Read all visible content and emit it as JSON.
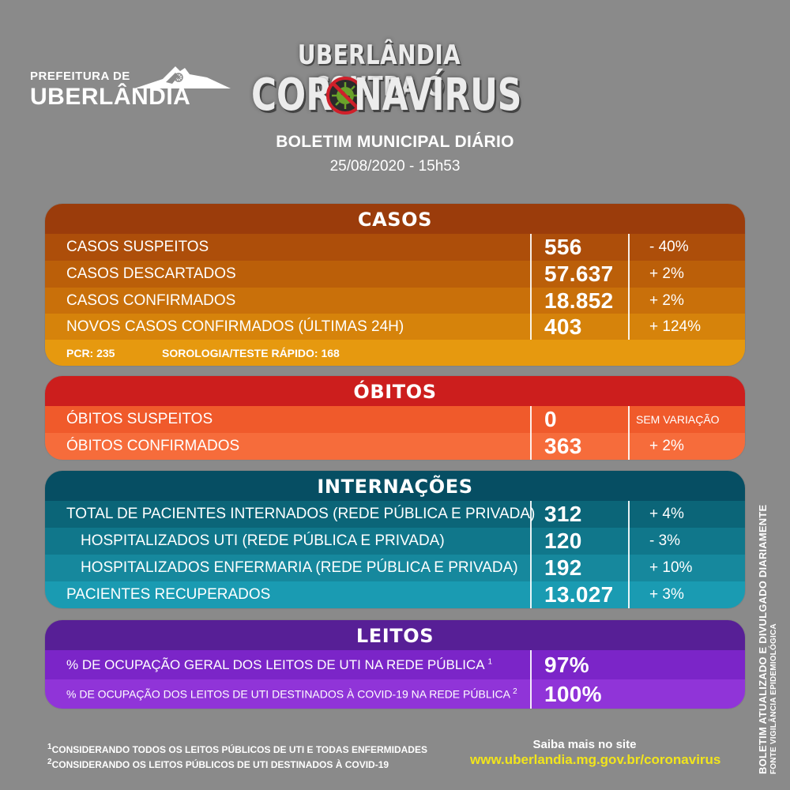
{
  "header": {
    "logo_line1": "PREFEITURA DE",
    "logo_line2": "UBERLÂNDIA",
    "title_line1": "UBERLÂNDIA CONTRA O",
    "title_co": "COR",
    "title_rest": "NAVÍRUS",
    "subtitle": "BOLETIM MUNICIPAL DIÁRIO",
    "date": "25/08/2020 - 15h53"
  },
  "casos": {
    "title": "CASOS",
    "rows": [
      {
        "label": "CASOS SUSPEITOS",
        "value": "556",
        "change": "- 40%"
      },
      {
        "label": "CASOS DESCARTADOS",
        "value": "57.637",
        "change": "+ 2%"
      },
      {
        "label": "CASOS CONFIRMADOS",
        "value": "18.852",
        "change": "+ 2%"
      },
      {
        "label": "NOVOS CASOS CONFIRMADOS (ÚLTIMAS 24H)",
        "value": "403",
        "change": "+ 124%"
      }
    ],
    "note_pcr": "PCR: 235",
    "note_sorologia": "SOROLOGIA/TESTE RÁPIDO: 168"
  },
  "obitos": {
    "title": "ÓBITOS",
    "rows": [
      {
        "label": "ÓBITOS SUSPEITOS",
        "value": "0",
        "change": "SEM VARIAÇÃO"
      },
      {
        "label": "ÓBITOS CONFIRMADOS",
        "value": "363",
        "change": "+ 2%"
      }
    ]
  },
  "internacoes": {
    "title": "INTERNAÇÕES",
    "rows": [
      {
        "label": "TOTAL DE PACIENTES INTERNADOS (REDE PÚBLICA E PRIVADA)",
        "value": "312",
        "change": "+ 4%"
      },
      {
        "label": "HOSPITALIZADOS UTI (REDE PÚBLICA E PRIVADA)",
        "value": "120",
        "change": "- 3%"
      },
      {
        "label": "HOSPITALIZADOS ENFERMARIA (REDE PÚBLICA E PRIVADA)",
        "value": "192",
        "change": "+ 10%"
      },
      {
        "label": "PACIENTES RECUPERADOS",
        "value": "13.027",
        "change": "+ 3%"
      }
    ]
  },
  "leitos": {
    "title": "LEITOS",
    "rows": [
      {
        "label": "% DE OCUPAÇÃO GERAL DOS LEITOS DE UTI NA REDE PÚBLICA",
        "sup": "1",
        "value": "97%"
      },
      {
        "label": "% DE OCUPAÇÃO DOS LEITOS DE UTI DESTINADOS À COVID-19 NA REDE PÚBLICA",
        "sup": "2",
        "value": "100%"
      }
    ]
  },
  "footer": {
    "note1_sup": "1",
    "note1": "CONSIDERANDO TODOS OS LEITOS PÚBLICOS DE UTI E TODAS ENFERMIDADES",
    "note2_sup": "2",
    "note2": "CONSIDERANDO OS LEITOS PÚBLICOS  DE UTI DESTINADOS À COVID-19",
    "site_label": "Saiba mais no site",
    "site_url": "www.uberlandia.mg.gov.br/coronavirus",
    "vertical1": "BOLETIM ATUALIZADO  E DIVULGADO DIARIAMENTE",
    "vertical2": "FONTE VIGILÂNCIA EPIDEMIOLÓGICA"
  },
  "colors": {
    "background": "#8a8a8a",
    "casos_header": "#9b3c0b",
    "obitos_header": "#cc1e1d",
    "internacoes_header": "#064e63",
    "leitos_header": "#571f96",
    "site_url": "#f2e51b"
  }
}
